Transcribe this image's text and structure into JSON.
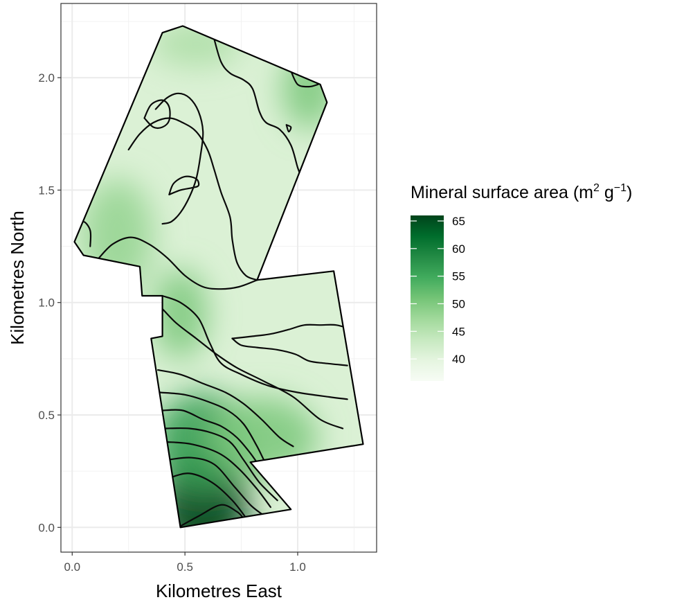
{
  "chart_data": {
    "type": "heatmap",
    "subtype": "filled contour map",
    "xlabel": "Kilometres East",
    "ylabel": "Kilometres North",
    "xlim": [
      -0.05,
      1.35
    ],
    "ylim": [
      -0.11,
      2.33
    ],
    "x_ticks": [
      0.0,
      0.5,
      1.0
    ],
    "x_tick_labels": [
      "0.0",
      "0.5",
      "1.0"
    ],
    "y_ticks": [
      0.0,
      0.5,
      1.0,
      1.5,
      2.0
    ],
    "y_tick_labels": [
      "0.0",
      "0.5",
      "1.0",
      "1.5",
      "2.0"
    ],
    "grid": true,
    "legend": {
      "title_main": "Mineral surface area (m",
      "title_sup1": "2",
      "title_mid": " g",
      "title_sup2": "−1",
      "title_end": ")",
      "placement": "right",
      "colorbar_range": [
        36,
        66
      ],
      "ticks": [
        40,
        45,
        50,
        55,
        60,
        65
      ],
      "tick_labels": [
        "40",
        "45",
        "50",
        "55",
        "60",
        "65"
      ],
      "colors": [
        "#f7fcf5",
        "#e5f5e0",
        "#c7e9c0",
        "#a1d99b",
        "#74c476",
        "#41ab5d",
        "#238b45",
        "#006d2c",
        "#00441b"
      ]
    },
    "field_boundary": [
      [
        0.4,
        2.2
      ],
      [
        0.49,
        2.23
      ],
      [
        1.1,
        1.97
      ],
      [
        1.13,
        1.89
      ],
      [
        0.82,
        1.1
      ],
      [
        1.16,
        1.14
      ],
      [
        1.29,
        0.37
      ],
      [
        0.79,
        0.29
      ],
      [
        0.97,
        0.08
      ],
      [
        0.48,
        0.0
      ],
      [
        0.35,
        0.84
      ],
      [
        0.4,
        0.85
      ],
      [
        0.4,
        1.03
      ],
      [
        0.31,
        1.03
      ],
      [
        0.3,
        1.16
      ],
      [
        0.05,
        1.21
      ],
      [
        0.01,
        1.27
      ]
    ],
    "hotspots": [
      {
        "x": 0.58,
        "y": 0.1,
        "value": 66,
        "rx": 0.2,
        "ry": 0.25
      },
      {
        "x": 0.58,
        "y": 0.38,
        "value": 56,
        "rx": 0.22,
        "ry": 0.22
      },
      {
        "x": 0.85,
        "y": 0.4,
        "value": 50,
        "rx": 0.24,
        "ry": 0.18
      },
      {
        "x": 0.48,
        "y": 0.95,
        "value": 50,
        "rx": 0.12,
        "ry": 0.2
      },
      {
        "x": 1.05,
        "y": 1.95,
        "value": 50,
        "rx": 0.12,
        "ry": 0.18
      },
      {
        "x": 0.2,
        "y": 1.3,
        "value": 48,
        "rx": 0.16,
        "ry": 0.25
      },
      {
        "x": 0.55,
        "y": 2.15,
        "value": 46,
        "rx": 0.2,
        "ry": 0.1
      }
    ],
    "contour_lines": [
      [
        [
          0.47,
          0.0
        ],
        [
          0.56,
          0.05
        ],
        [
          0.66,
          0.1
        ],
        [
          0.73,
          0.07
        ],
        [
          0.76,
          0.04
        ]
      ],
      [
        [
          0.43,
          0.22
        ],
        [
          0.52,
          0.24
        ],
        [
          0.62,
          0.2
        ],
        [
          0.71,
          0.12
        ],
        [
          0.78,
          0.03
        ]
      ],
      [
        [
          0.42,
          0.3
        ],
        [
          0.53,
          0.31
        ],
        [
          0.63,
          0.28
        ],
        [
          0.72,
          0.18
        ],
        [
          0.79,
          0.1
        ],
        [
          0.84,
          0.06
        ]
      ],
      [
        [
          0.42,
          0.38
        ],
        [
          0.53,
          0.37
        ],
        [
          0.65,
          0.33
        ],
        [
          0.74,
          0.26
        ],
        [
          0.82,
          0.17
        ],
        [
          0.88,
          0.09
        ]
      ],
      [
        [
          0.41,
          0.44
        ],
        [
          0.52,
          0.44
        ],
        [
          0.62,
          0.42
        ],
        [
          0.7,
          0.38
        ],
        [
          0.76,
          0.3
        ],
        [
          0.83,
          0.2
        ],
        [
          0.91,
          0.12
        ]
      ],
      [
        [
          0.4,
          0.52
        ],
        [
          0.49,
          0.52
        ],
        [
          0.58,
          0.48
        ],
        [
          0.66,
          0.45
        ],
        [
          0.73,
          0.4
        ],
        [
          0.79,
          0.33
        ],
        [
          0.86,
          0.23
        ],
        [
          0.93,
          0.14
        ]
      ],
      [
        [
          0.39,
          0.6
        ],
        [
          0.5,
          0.59
        ],
        [
          0.6,
          0.56
        ],
        [
          0.69,
          0.52
        ],
        [
          0.76,
          0.46
        ],
        [
          0.82,
          0.36
        ],
        [
          0.86,
          0.28
        ],
        [
          0.89,
          0.24
        ]
      ],
      [
        [
          0.38,
          0.7
        ],
        [
          0.48,
          0.68
        ],
        [
          0.58,
          0.64
        ],
        [
          0.68,
          0.6
        ],
        [
          0.76,
          0.55
        ],
        [
          0.84,
          0.48
        ],
        [
          0.92,
          0.4
        ],
        [
          0.98,
          0.36
        ]
      ],
      [
        [
          0.31,
          1.03
        ],
        [
          0.38,
          0.99
        ],
        [
          0.46,
          0.91
        ],
        [
          0.55,
          0.84
        ],
        [
          0.64,
          0.77
        ],
        [
          0.73,
          0.71
        ],
        [
          0.85,
          0.65
        ],
        [
          0.98,
          0.58
        ],
        [
          1.1,
          0.48
        ],
        [
          1.2,
          0.44
        ]
      ],
      [
        [
          0.4,
          1.03
        ],
        [
          0.48,
          1.0
        ],
        [
          0.56,
          0.93
        ],
        [
          0.61,
          0.82
        ],
        [
          0.66,
          0.73
        ],
        [
          0.75,
          0.68
        ],
        [
          0.87,
          0.63
        ],
        [
          1.0,
          0.6
        ],
        [
          1.14,
          0.58
        ],
        [
          1.22,
          0.57
        ]
      ],
      [
        [
          0.71,
          0.84
        ],
        [
          0.8,
          0.85
        ],
        [
          0.88,
          0.86
        ],
        [
          0.96,
          0.88
        ],
        [
          1.03,
          0.9
        ],
        [
          1.1,
          0.9
        ],
        [
          1.17,
          0.9
        ],
        [
          1.24,
          0.88
        ]
      ],
      [
        [
          0.71,
          0.84
        ],
        [
          0.75,
          0.81
        ],
        [
          0.82,
          0.8
        ],
        [
          0.91,
          0.79
        ],
        [
          0.99,
          0.77
        ],
        [
          1.05,
          0.74
        ],
        [
          1.12,
          0.73
        ],
        [
          1.22,
          0.72
        ]
      ],
      [
        [
          0.12,
          1.2
        ],
        [
          0.18,
          1.26
        ],
        [
          0.26,
          1.29
        ],
        [
          0.34,
          1.26
        ],
        [
          0.42,
          1.2
        ],
        [
          0.5,
          1.12
        ],
        [
          0.58,
          1.07
        ],
        [
          0.66,
          1.06
        ],
        [
          0.74,
          1.07
        ],
        [
          0.82,
          1.1
        ]
      ],
      [
        [
          0.02,
          1.33
        ],
        [
          0.05,
          1.36
        ],
        [
          0.08,
          1.32
        ],
        [
          0.08,
          1.25
        ]
      ],
      [
        [
          0.25,
          1.68
        ],
        [
          0.3,
          1.75
        ],
        [
          0.36,
          1.8
        ],
        [
          0.43,
          1.82
        ],
        [
          0.49,
          1.8
        ],
        [
          0.55,
          1.76
        ],
        [
          0.6,
          1.68
        ],
        [
          0.63,
          1.59
        ],
        [
          0.66,
          1.49
        ],
        [
          0.7,
          1.38
        ],
        [
          0.71,
          1.28
        ],
        [
          0.73,
          1.18
        ],
        [
          0.77,
          1.12
        ],
        [
          0.82,
          1.1
        ]
      ],
      [
        [
          0.37,
          1.86
        ],
        [
          0.42,
          1.91
        ],
        [
          0.47,
          1.93
        ],
        [
          0.52,
          1.91
        ],
        [
          0.56,
          1.85
        ],
        [
          0.58,
          1.76
        ],
        [
          0.57,
          1.66
        ],
        [
          0.55,
          1.55
        ],
        [
          0.52,
          1.47
        ],
        [
          0.48,
          1.4
        ],
        [
          0.44,
          1.36
        ],
        [
          0.4,
          1.35
        ]
      ],
      [
        [
          0.43,
          1.48
        ],
        [
          0.48,
          1.5
        ],
        [
          0.53,
          1.51
        ],
        [
          0.56,
          1.52
        ],
        [
          0.55,
          1.55
        ],
        [
          0.5,
          1.56
        ],
        [
          0.45,
          1.53
        ],
        [
          0.43,
          1.48
        ]
      ],
      [
        [
          0.32,
          1.82
        ],
        [
          0.35,
          1.88
        ],
        [
          0.4,
          1.9
        ],
        [
          0.43,
          1.87
        ],
        [
          0.43,
          1.81
        ],
        [
          0.4,
          1.78
        ],
        [
          0.36,
          1.78
        ],
        [
          0.32,
          1.82
        ]
      ],
      [
        [
          0.63,
          2.17
        ],
        [
          0.66,
          2.07
        ],
        [
          0.7,
          2.02
        ],
        [
          0.76,
          1.99
        ],
        [
          0.8,
          1.95
        ],
        [
          0.83,
          1.85
        ],
        [
          0.86,
          1.8
        ],
        [
          0.92,
          1.77
        ],
        [
          0.97,
          1.7
        ],
        [
          1.0,
          1.6
        ],
        [
          1.02,
          1.55
        ]
      ],
      [
        [
          0.97,
          2.03
        ],
        [
          1.0,
          1.97
        ],
        [
          1.05,
          1.96
        ],
        [
          1.09,
          1.97
        ]
      ],
      [
        [
          0.95,
          1.79
        ],
        [
          0.97,
          1.78
        ],
        [
          0.96,
          1.76
        ],
        [
          0.95,
          1.79
        ]
      ]
    ]
  }
}
